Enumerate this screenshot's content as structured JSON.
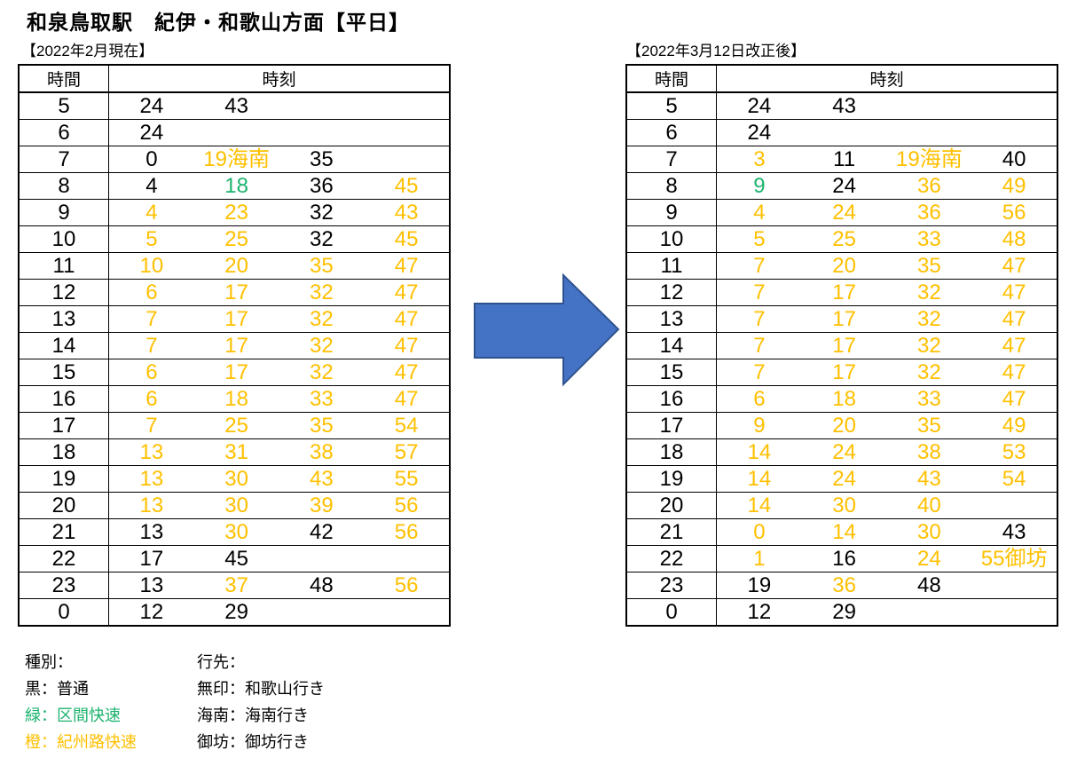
{
  "title": "和泉鳥取駅　紀伊・和歌山方面【平日】",
  "colors": {
    "black": "#000000",
    "orange": "#FFC000",
    "green": "#1DB36E",
    "arrow_fill": "#4472C4",
    "arrow_stroke": "#2F528F"
  },
  "arrow_icon": "right-arrow",
  "tables": [
    {
      "id": "before",
      "caption": "【2022年2月現在】",
      "col_headers": {
        "hour": "時間",
        "minutes": "時刻"
      },
      "rows": [
        {
          "hour": "5",
          "times": [
            {
              "t": "24",
              "c": "black"
            },
            {
              "t": "43",
              "c": "black"
            }
          ]
        },
        {
          "hour": "6",
          "times": [
            {
              "t": "24",
              "c": "black"
            }
          ]
        },
        {
          "hour": "7",
          "times": [
            {
              "t": "0",
              "c": "black"
            },
            {
              "t": "19海南",
              "c": "orange"
            },
            {
              "t": "35",
              "c": "black"
            }
          ]
        },
        {
          "hour": "8",
          "times": [
            {
              "t": "4",
              "c": "black"
            },
            {
              "t": "18",
              "c": "green"
            },
            {
              "t": "36",
              "c": "black"
            },
            {
              "t": "45",
              "c": "orange"
            }
          ]
        },
        {
          "hour": "9",
          "times": [
            {
              "t": "4",
              "c": "orange"
            },
            {
              "t": "23",
              "c": "orange"
            },
            {
              "t": "32",
              "c": "black"
            },
            {
              "t": "43",
              "c": "orange"
            }
          ]
        },
        {
          "hour": "10",
          "times": [
            {
              "t": "5",
              "c": "orange"
            },
            {
              "t": "25",
              "c": "orange"
            },
            {
              "t": "32",
              "c": "black"
            },
            {
              "t": "45",
              "c": "orange"
            }
          ]
        },
        {
          "hour": "11",
          "times": [
            {
              "t": "10",
              "c": "orange"
            },
            {
              "t": "20",
              "c": "orange"
            },
            {
              "t": "35",
              "c": "orange"
            },
            {
              "t": "47",
              "c": "orange"
            }
          ]
        },
        {
          "hour": "12",
          "times": [
            {
              "t": "6",
              "c": "orange"
            },
            {
              "t": "17",
              "c": "orange"
            },
            {
              "t": "32",
              "c": "orange"
            },
            {
              "t": "47",
              "c": "orange"
            }
          ]
        },
        {
          "hour": "13",
          "times": [
            {
              "t": "7",
              "c": "orange"
            },
            {
              "t": "17",
              "c": "orange"
            },
            {
              "t": "32",
              "c": "orange"
            },
            {
              "t": "47",
              "c": "orange"
            }
          ]
        },
        {
          "hour": "14",
          "times": [
            {
              "t": "7",
              "c": "orange"
            },
            {
              "t": "17",
              "c": "orange"
            },
            {
              "t": "32",
              "c": "orange"
            },
            {
              "t": "47",
              "c": "orange"
            }
          ]
        },
        {
          "hour": "15",
          "times": [
            {
              "t": "6",
              "c": "orange"
            },
            {
              "t": "17",
              "c": "orange"
            },
            {
              "t": "32",
              "c": "orange"
            },
            {
              "t": "47",
              "c": "orange"
            }
          ]
        },
        {
          "hour": "16",
          "times": [
            {
              "t": "6",
              "c": "orange"
            },
            {
              "t": "18",
              "c": "orange"
            },
            {
              "t": "33",
              "c": "orange"
            },
            {
              "t": "47",
              "c": "orange"
            }
          ]
        },
        {
          "hour": "17",
          "times": [
            {
              "t": "7",
              "c": "orange"
            },
            {
              "t": "25",
              "c": "orange"
            },
            {
              "t": "35",
              "c": "orange"
            },
            {
              "t": "54",
              "c": "orange"
            }
          ]
        },
        {
          "hour": "18",
          "times": [
            {
              "t": "13",
              "c": "orange"
            },
            {
              "t": "31",
              "c": "orange"
            },
            {
              "t": "38",
              "c": "orange"
            },
            {
              "t": "57",
              "c": "orange"
            }
          ]
        },
        {
          "hour": "19",
          "times": [
            {
              "t": "13",
              "c": "orange"
            },
            {
              "t": "30",
              "c": "orange"
            },
            {
              "t": "43",
              "c": "orange"
            },
            {
              "t": "55",
              "c": "orange"
            }
          ]
        },
        {
          "hour": "20",
          "times": [
            {
              "t": "13",
              "c": "orange"
            },
            {
              "t": "30",
              "c": "orange"
            },
            {
              "t": "39",
              "c": "orange"
            },
            {
              "t": "56",
              "c": "orange"
            }
          ]
        },
        {
          "hour": "21",
          "times": [
            {
              "t": "13",
              "c": "black"
            },
            {
              "t": "30",
              "c": "orange"
            },
            {
              "t": "42",
              "c": "black"
            },
            {
              "t": "56",
              "c": "orange"
            }
          ]
        },
        {
          "hour": "22",
          "times": [
            {
              "t": "17",
              "c": "black"
            },
            {
              "t": "45",
              "c": "black"
            }
          ]
        },
        {
          "hour": "23",
          "times": [
            {
              "t": "13",
              "c": "black"
            },
            {
              "t": "37",
              "c": "orange"
            },
            {
              "t": "48",
              "c": "black"
            },
            {
              "t": "56",
              "c": "orange"
            }
          ]
        },
        {
          "hour": "0",
          "times": [
            {
              "t": "12",
              "c": "black"
            },
            {
              "t": "29",
              "c": "black"
            }
          ]
        }
      ]
    },
    {
      "id": "after",
      "caption": "【2022年3月12日改正後】",
      "col_headers": {
        "hour": "時間",
        "minutes": "時刻"
      },
      "rows": [
        {
          "hour": "5",
          "times": [
            {
              "t": "24",
              "c": "black"
            },
            {
              "t": "43",
              "c": "black"
            }
          ]
        },
        {
          "hour": "6",
          "times": [
            {
              "t": "24",
              "c": "black"
            }
          ]
        },
        {
          "hour": "7",
          "times": [
            {
              "t": "3",
              "c": "orange"
            },
            {
              "t": "11",
              "c": "black"
            },
            {
              "t": "19海南",
              "c": "orange"
            },
            {
              "t": "40",
              "c": "black"
            }
          ]
        },
        {
          "hour": "8",
          "times": [
            {
              "t": "9",
              "c": "green"
            },
            {
              "t": "24",
              "c": "black"
            },
            {
              "t": "36",
              "c": "orange"
            },
            {
              "t": "49",
              "c": "orange"
            }
          ]
        },
        {
          "hour": "9",
          "times": [
            {
              "t": "4",
              "c": "orange"
            },
            {
              "t": "24",
              "c": "orange"
            },
            {
              "t": "36",
              "c": "orange"
            },
            {
              "t": "56",
              "c": "orange"
            }
          ]
        },
        {
          "hour": "10",
          "times": [
            {
              "t": "5",
              "c": "orange"
            },
            {
              "t": "25",
              "c": "orange"
            },
            {
              "t": "33",
              "c": "orange"
            },
            {
              "t": "48",
              "c": "orange"
            }
          ]
        },
        {
          "hour": "11",
          "times": [
            {
              "t": "7",
              "c": "orange"
            },
            {
              "t": "20",
              "c": "orange"
            },
            {
              "t": "35",
              "c": "orange"
            },
            {
              "t": "47",
              "c": "orange"
            }
          ]
        },
        {
          "hour": "12",
          "times": [
            {
              "t": "7",
              "c": "orange"
            },
            {
              "t": "17",
              "c": "orange"
            },
            {
              "t": "32",
              "c": "orange"
            },
            {
              "t": "47",
              "c": "orange"
            }
          ]
        },
        {
          "hour": "13",
          "times": [
            {
              "t": "7",
              "c": "orange"
            },
            {
              "t": "17",
              "c": "orange"
            },
            {
              "t": "32",
              "c": "orange"
            },
            {
              "t": "47",
              "c": "orange"
            }
          ]
        },
        {
          "hour": "14",
          "times": [
            {
              "t": "7",
              "c": "orange"
            },
            {
              "t": "17",
              "c": "orange"
            },
            {
              "t": "32",
              "c": "orange"
            },
            {
              "t": "47",
              "c": "orange"
            }
          ]
        },
        {
          "hour": "15",
          "times": [
            {
              "t": "7",
              "c": "orange"
            },
            {
              "t": "17",
              "c": "orange"
            },
            {
              "t": "32",
              "c": "orange"
            },
            {
              "t": "47",
              "c": "orange"
            }
          ]
        },
        {
          "hour": "16",
          "times": [
            {
              "t": "6",
              "c": "orange"
            },
            {
              "t": "18",
              "c": "orange"
            },
            {
              "t": "33",
              "c": "orange"
            },
            {
              "t": "47",
              "c": "orange"
            }
          ]
        },
        {
          "hour": "17",
          "times": [
            {
              "t": "9",
              "c": "orange"
            },
            {
              "t": "20",
              "c": "orange"
            },
            {
              "t": "35",
              "c": "orange"
            },
            {
              "t": "49",
              "c": "orange"
            }
          ]
        },
        {
          "hour": "18",
          "times": [
            {
              "t": "14",
              "c": "orange"
            },
            {
              "t": "24",
              "c": "orange"
            },
            {
              "t": "38",
              "c": "orange"
            },
            {
              "t": "53",
              "c": "orange"
            }
          ]
        },
        {
          "hour": "19",
          "times": [
            {
              "t": "14",
              "c": "orange"
            },
            {
              "t": "24",
              "c": "orange"
            },
            {
              "t": "43",
              "c": "orange"
            },
            {
              "t": "54",
              "c": "orange"
            }
          ]
        },
        {
          "hour": "20",
          "times": [
            {
              "t": "14",
              "c": "orange"
            },
            {
              "t": "30",
              "c": "orange"
            },
            {
              "t": "40",
              "c": "orange"
            }
          ]
        },
        {
          "hour": "21",
          "times": [
            {
              "t": "0",
              "c": "orange"
            },
            {
              "t": "14",
              "c": "orange"
            },
            {
              "t": "30",
              "c": "orange"
            },
            {
              "t": "43",
              "c": "black"
            }
          ]
        },
        {
          "hour": "22",
          "times": [
            {
              "t": "1",
              "c": "orange"
            },
            {
              "t": "16",
              "c": "black"
            },
            {
              "t": "24",
              "c": "orange"
            },
            {
              "t": "55御坊",
              "c": "orange"
            }
          ]
        },
        {
          "hour": "23",
          "times": [
            {
              "t": "19",
              "c": "black"
            },
            {
              "t": "36",
              "c": "orange"
            },
            {
              "t": "48",
              "c": "black"
            }
          ]
        },
        {
          "hour": "0",
          "times": [
            {
              "t": "12",
              "c": "black"
            },
            {
              "t": "29",
              "c": "black"
            }
          ]
        }
      ]
    }
  ],
  "legend": {
    "type_header": "種別：",
    "types": [
      {
        "label": "黒：普通",
        "color": "black"
      },
      {
        "label": "緑：区間快速",
        "color": "green"
      },
      {
        "label": "橙：紀州路快速",
        "color": "orange"
      }
    ],
    "dest_header": "行先：",
    "destinations": [
      "無印：和歌山行き",
      "海南：海南行き",
      "御坊：御坊行き"
    ]
  }
}
